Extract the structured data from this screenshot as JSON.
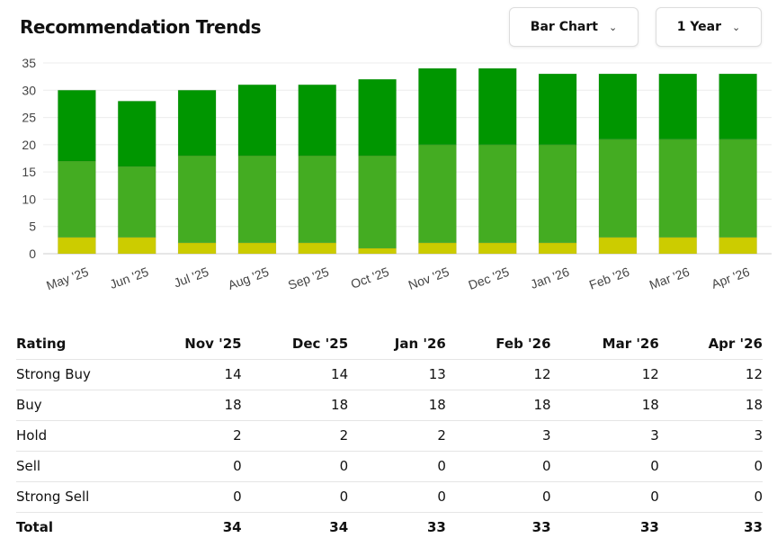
{
  "header": {
    "title": "Recommendation Trends",
    "chart_type": "Bar Chart",
    "period": "1 Year"
  },
  "colors": {
    "strong_buy": "#009600",
    "buy": "#44ac22",
    "hold": "#cccc00",
    "sell": "#f08c00",
    "strong_sell": "#e03030"
  },
  "chart_data": {
    "type": "bar",
    "stacked": true,
    "categories": [
      "May '25",
      "Jun '25",
      "Jul '25",
      "Aug '25",
      "Sep '25",
      "Oct '25",
      "Nov '25",
      "Dec '25",
      "Jan '26",
      "Feb '26",
      "Mar '26",
      "Apr '26"
    ],
    "series": [
      {
        "name": "Strong Sell",
        "values": [
          0,
          0,
          0,
          0,
          0,
          0,
          0,
          0,
          0,
          0,
          0,
          0
        ]
      },
      {
        "name": "Sell",
        "values": [
          0,
          0,
          0,
          0,
          0,
          0,
          0,
          0,
          0,
          0,
          0,
          0
        ]
      },
      {
        "name": "Hold",
        "values": [
          3,
          3,
          2,
          2,
          2,
          1,
          2,
          2,
          2,
          3,
          3,
          3
        ]
      },
      {
        "name": "Buy",
        "values": [
          14,
          13,
          16,
          16,
          16,
          17,
          18,
          18,
          18,
          18,
          18,
          18
        ]
      },
      {
        "name": "Strong Buy",
        "values": [
          13,
          12,
          12,
          13,
          13,
          14,
          14,
          14,
          13,
          12,
          12,
          12
        ]
      }
    ],
    "ylim": [
      0,
      35
    ],
    "yticks": [
      0,
      5,
      10,
      15,
      20,
      25,
      30,
      35
    ],
    "grid": true,
    "legend": "none"
  },
  "table": {
    "headers": [
      "Rating",
      "Nov '25",
      "Dec '25",
      "Jan '26",
      "Feb '26",
      "Mar '26",
      "Apr '26"
    ],
    "rows": [
      [
        "Strong Buy",
        "14",
        "14",
        "13",
        "12",
        "12",
        "12"
      ],
      [
        "Buy",
        "18",
        "18",
        "18",
        "18",
        "18",
        "18"
      ],
      [
        "Hold",
        "2",
        "2",
        "2",
        "3",
        "3",
        "3"
      ],
      [
        "Sell",
        "0",
        "0",
        "0",
        "0",
        "0",
        "0"
      ],
      [
        "Strong Sell",
        "0",
        "0",
        "0",
        "0",
        "0",
        "0"
      ]
    ],
    "total": [
      "Total",
      "34",
      "34",
      "33",
      "33",
      "33",
      "33"
    ]
  }
}
